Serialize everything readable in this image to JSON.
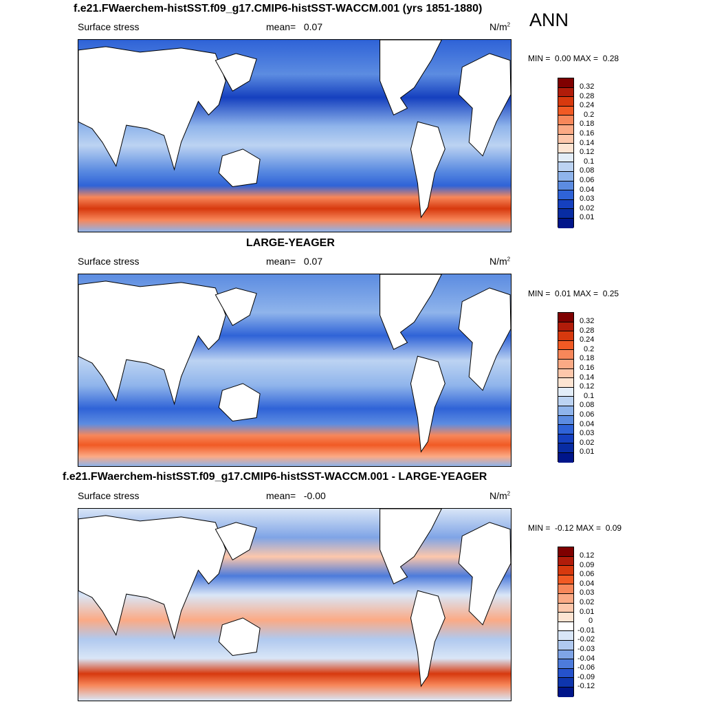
{
  "season": "ANN",
  "panels": [
    {
      "title": "f.e21.FWaerchem-histSST.f09_g17.CMIP6-histSST-WACCM.001 (yrs 1851-1880)",
      "variable": "Surface stress",
      "mean_label": "mean=",
      "mean_value": "0.07",
      "units": "N/m",
      "units_exp": "2",
      "min_label": "MIN =",
      "min_value": "0.00",
      "max_label": "MAX =",
      "max_value": "0.28",
      "colorbar_labels": [
        "0.32",
        "0.28",
        "0.24",
        "0.2",
        "0.18",
        "0.16",
        "0.14",
        "0.12",
        "0.1",
        "0.08",
        "0.06",
        "0.04",
        "0.03",
        "0.02",
        "0.01"
      ],
      "colorbar_colors": [
        "#7f0000",
        "#b11c0a",
        "#d7390e",
        "#f15a24",
        "#f7875a",
        "#fbaa85",
        "#fdc7ab",
        "#fde4d2",
        "#e3edf8",
        "#bcd3f2",
        "#8fb4eb",
        "#5c8ce1",
        "#2f63d7",
        "#1540bf",
        "#082ca3",
        "#00158a"
      ]
    },
    {
      "title": "LARGE-YEAGER",
      "variable": "Surface stress",
      "mean_label": "mean=",
      "mean_value": "0.07",
      "units": "N/m",
      "units_exp": "2",
      "min_label": "MIN =",
      "min_value": "0.01",
      "max_label": "MAX =",
      "max_value": "0.25",
      "colorbar_labels": [
        "0.32",
        "0.28",
        "0.24",
        "0.2",
        "0.18",
        "0.16",
        "0.14",
        "0.12",
        "0.1",
        "0.08",
        "0.06",
        "0.04",
        "0.03",
        "0.02",
        "0.01"
      ],
      "colorbar_colors": [
        "#7f0000",
        "#b11c0a",
        "#d7390e",
        "#f15a24",
        "#f7875a",
        "#fbaa85",
        "#fdc7ab",
        "#fde4d2",
        "#e3edf8",
        "#bcd3f2",
        "#8fb4eb",
        "#5c8ce1",
        "#2f63d7",
        "#1540bf",
        "#082ca3",
        "#00158a"
      ]
    },
    {
      "title": "f.e21.FWaerchem-histSST.f09_g17.CMIP6-histSST-WACCM.001 - LARGE-YEAGER",
      "variable": "Surface stress",
      "mean_label": "mean=",
      "mean_value": "-0.00",
      "units": "N/m",
      "units_exp": "2",
      "min_label": "MIN =",
      "min_value": "-0.12",
      "max_label": "MAX =",
      "max_value": "0.09",
      "colorbar_labels": [
        "0.12",
        "0.09",
        "0.06",
        "0.04",
        "0.03",
        "0.02",
        "0.01",
        "0",
        "-0.01",
        "-0.02",
        "-0.03",
        "-0.04",
        "-0.06",
        "-0.09",
        "-0.12"
      ],
      "colorbar_colors": [
        "#7f0000",
        "#b11c0a",
        "#d7390e",
        "#f15a24",
        "#f7875a",
        "#fbaa85",
        "#fdc7ab",
        "#fde4d2",
        "#ffffff",
        "#d9e6f7",
        "#b0c9ef",
        "#7fa4e6",
        "#4d7bdb",
        "#2552cc",
        "#0e35ad",
        "#00158a"
      ]
    }
  ]
}
